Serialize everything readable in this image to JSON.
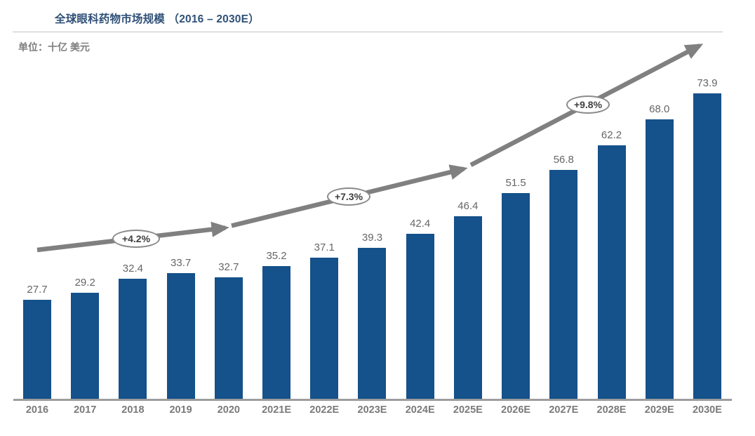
{
  "title": "全球眼科药物市场规模 （2016 – 2030E）",
  "unit_label": "单位：十亿 美元",
  "chart_data": {
    "type": "bar",
    "title": "全球眼科药物市场规模 （2016 – 2030E）",
    "ylabel": "单位：十亿 美元",
    "xlabel": "",
    "categories": [
      "2016",
      "2017",
      "2018",
      "2019",
      "2020",
      "2021E",
      "2022E",
      "2023E",
      "2024E",
      "2025E",
      "2026E",
      "2027E",
      "2028E",
      "2029E",
      "2030E"
    ],
    "values": [
      27.7,
      29.2,
      32.4,
      33.7,
      32.7,
      35.2,
      37.1,
      39.3,
      42.4,
      46.4,
      51.5,
      56.8,
      62.2,
      68.0,
      73.9
    ],
    "value_labels": [
      "27.7",
      "29.2",
      "32.4",
      "33.7",
      "32.7",
      "35.2",
      "37.1",
      "39.3",
      "42.4",
      "46.4",
      "51.5",
      "56.8",
      "62.2",
      "68.0",
      "73.9"
    ],
    "growth_annotations": [
      {
        "label": "+4.2%",
        "period": "2016-2020"
      },
      {
        "label": "+7.3%",
        "period": "2020-2025E"
      },
      {
        "label": "+9.8%",
        "period": "2025E-2030E"
      }
    ],
    "legend_position": "none",
    "grid": false,
    "ylim": [
      0,
      80
    ],
    "colors": {
      "bar": "#15518A",
      "arrow": "#808080",
      "title": "#2F5077",
      "value_label": "#666666",
      "axis_label": "#7a7a7a",
      "axis_line": "#9d9d9d"
    }
  }
}
